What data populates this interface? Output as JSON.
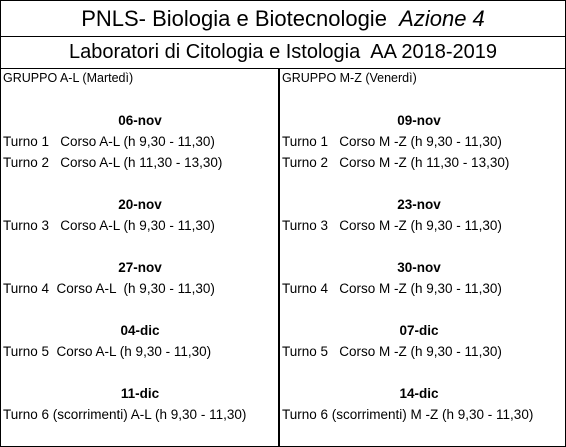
{
  "header": {
    "title": "PNLS- Biologia e Biotecnologie",
    "title_italic": "Azione 4",
    "subtitle": "Laboratori di Citologia e Istologia  AA 2018-2019"
  },
  "columns": [
    {
      "header": "GRUPPO A-L (Martedì)",
      "blocks": [
        {
          "date": "06-nov",
          "turni": [
            "Turno 1   Corso A-L (h 9,30 - 11,30)",
            "Turno 2   Corso A-L (h 11,30 - 13,30)"
          ]
        },
        {
          "date": "20-nov",
          "turni": [
            "Turno 3   Corso A-L (h 9,30 - 11,30)"
          ]
        },
        {
          "date": "27-nov",
          "turni": [
            "Turno 4  Corso A-L  (h 9,30 - 11,30)"
          ]
        },
        {
          "date": "04-dic",
          "turni": [
            "Turno 5  Corso A-L (h 9,30 - 11,30)"
          ]
        },
        {
          "date": "11-dic",
          "turni": [
            "Turno 6 (scorrimenti) A-L (h 9,30 - 11,30)"
          ]
        }
      ]
    },
    {
      "header": "GRUPPO M-Z (Venerdì)",
      "blocks": [
        {
          "date": "09-nov",
          "turni": [
            "Turno 1   Corso M -Z (h 9,30 - 11,30)",
            "Turno 2   Corso M -Z (h 11,30 - 13,30)"
          ]
        },
        {
          "date": "23-nov",
          "turni": [
            "Turno 3   Corso M -Z (h 9,30 - 11,30)"
          ]
        },
        {
          "date": "30-nov",
          "turni": [
            "Turno 4   Corso M -Z (h 9,30 - 11,30)"
          ]
        },
        {
          "date": "07-dic",
          "turni": [
            "Turno 5   Corso M -Z (h 9,30 - 11,30)"
          ]
        },
        {
          "date": "14-dic",
          "turni": [
            "Turno 6 (scorrimenti) M -Z (h 9,30 - 11,30)"
          ]
        }
      ]
    }
  ]
}
